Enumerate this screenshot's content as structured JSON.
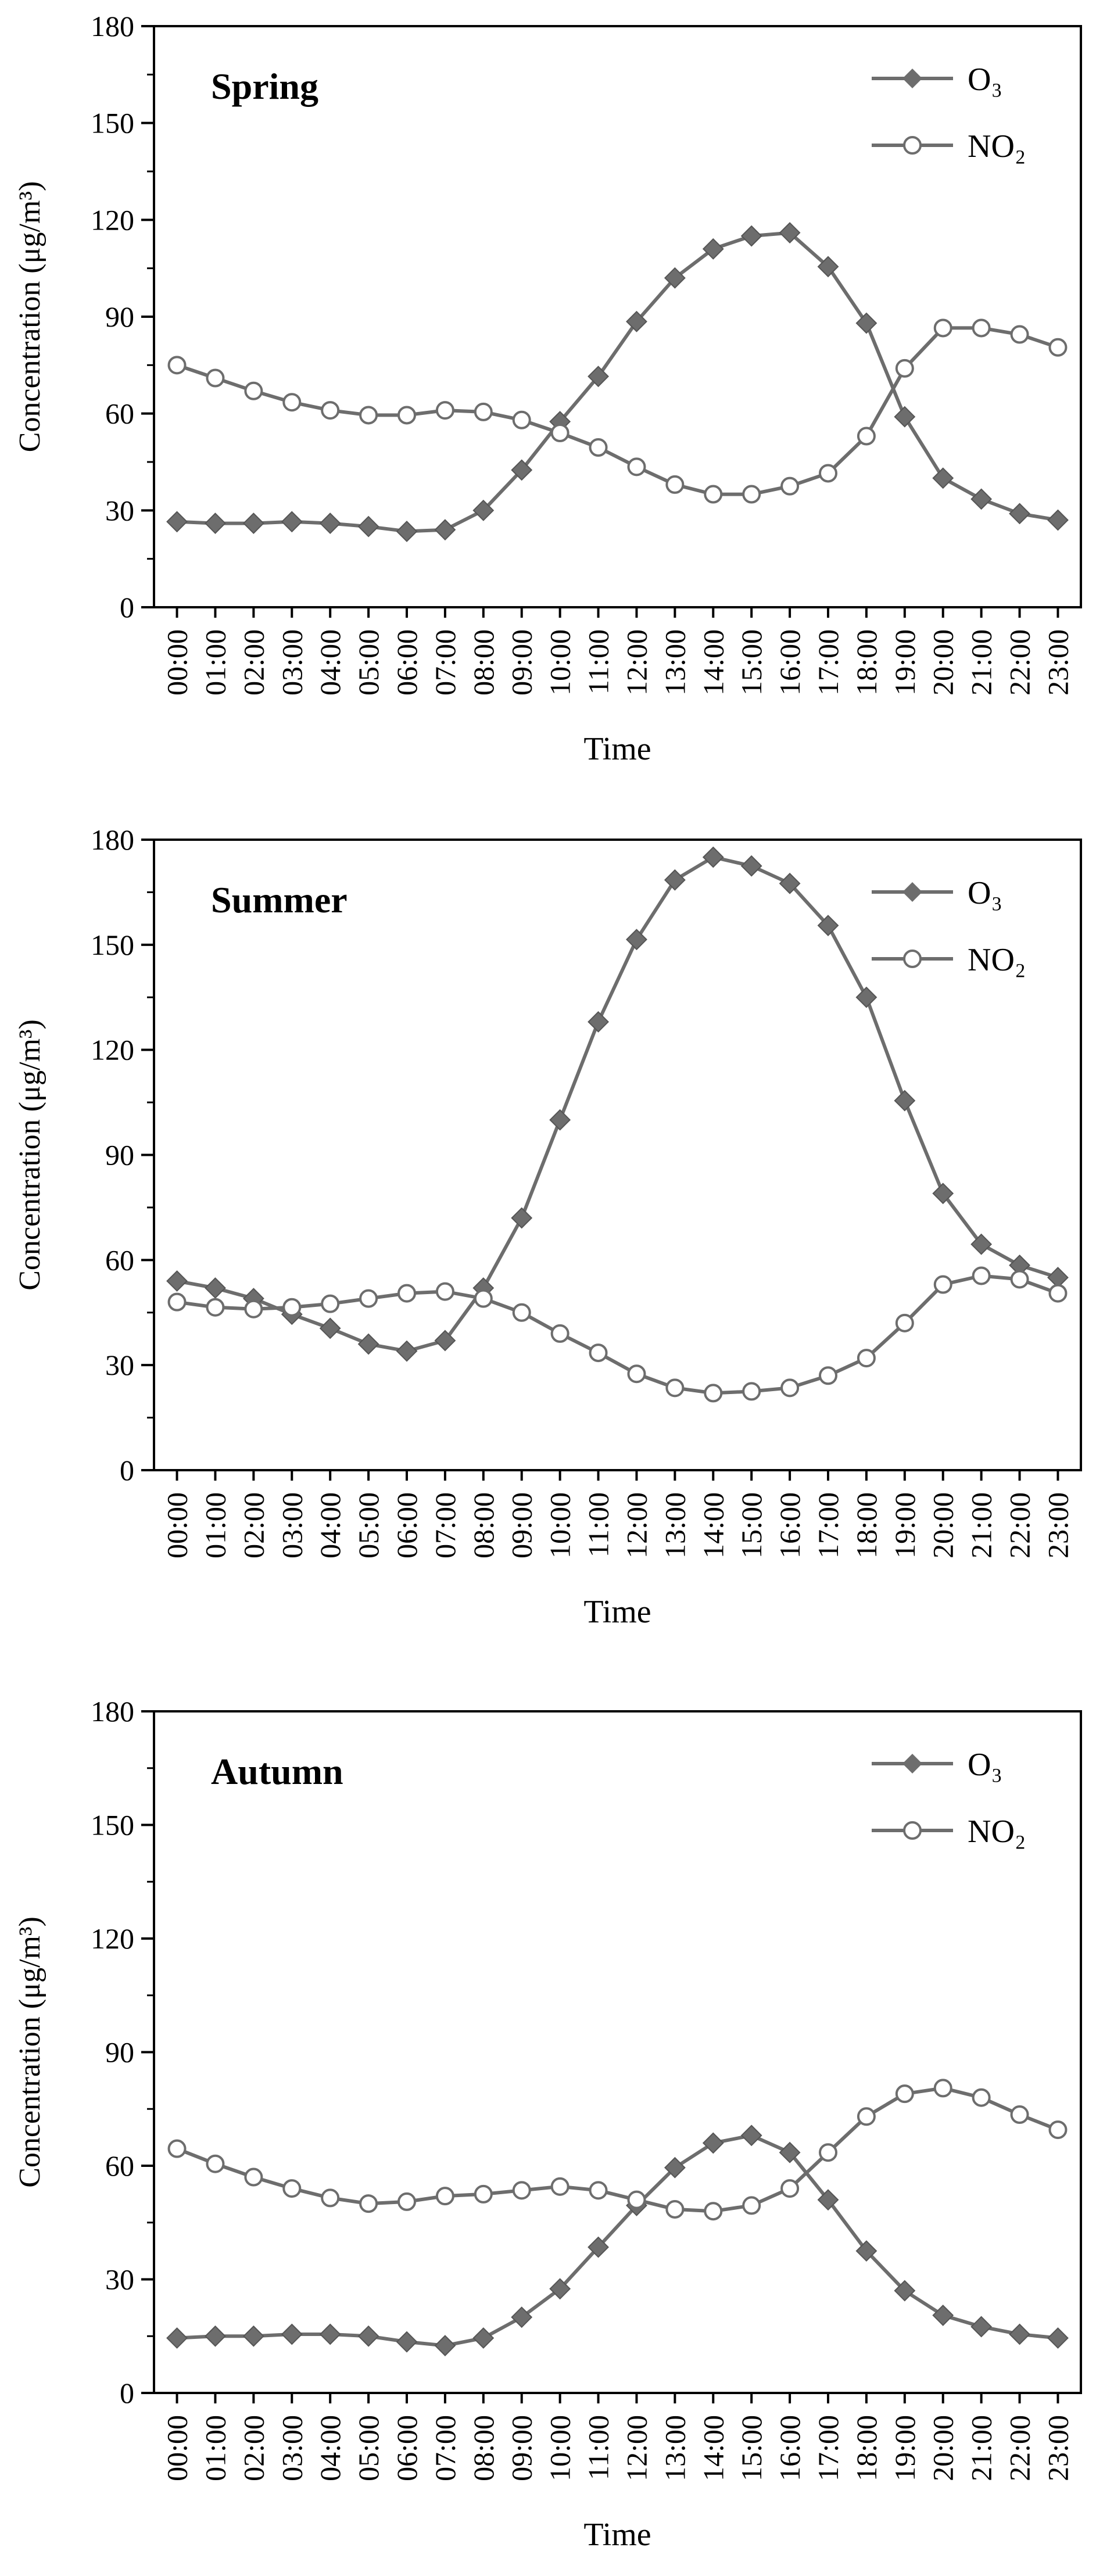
{
  "colors": {
    "o3": "#6d6d6d",
    "no2": "#6d6d6d",
    "no2_fill": "#ffffff",
    "axis": "#000000"
  },
  "chart_data": [
    {
      "type": "line",
      "title": "Spring",
      "xlabel": "Time",
      "ylabel": "Concentration (μg/m³)",
      "ylim": [
        0,
        180
      ],
      "yticks": [
        "0",
        "30",
        "60",
        "90",
        "120",
        "150",
        "180"
      ],
      "categories": [
        "00:00",
        "01:00",
        "02:00",
        "03:00",
        "04:00",
        "05:00",
        "06:00",
        "07:00",
        "08:00",
        "09:00",
        "10:00",
        "11:00",
        "12:00",
        "13:00",
        "14:00",
        "15:00",
        "16:00",
        "17:00",
        "18:00",
        "19:00",
        "20:00",
        "21:00",
        "22:00",
        "23:00"
      ],
      "legend_position": "top-right",
      "series": [
        {
          "name": "O₃",
          "marker": "diamond",
          "values": [
            26.5,
            26,
            26,
            26.5,
            26,
            25,
            23.5,
            24,
            30,
            42.5,
            57.5,
            71.5,
            88.5,
            102,
            111,
            115,
            116,
            105.5,
            88,
            59,
            40,
            33.5,
            29,
            27
          ]
        },
        {
          "name": "NO₂",
          "marker": "circle",
          "values": [
            75,
            71,
            67,
            63.5,
            61,
            59.5,
            59.5,
            61,
            60.5,
            58,
            54,
            49.5,
            43.5,
            38,
            35,
            35,
            37.5,
            41.5,
            53,
            74,
            86.5,
            86.5,
            84.5,
            80.5
          ]
        }
      ]
    },
    {
      "type": "line",
      "title": "Summer",
      "xlabel": "Time",
      "ylabel": "Concentration (μg/m³)",
      "ylim": [
        0,
        180
      ],
      "yticks": [
        "0",
        "30",
        "60",
        "90",
        "120",
        "150",
        "180"
      ],
      "categories": [
        "00:00",
        "01:00",
        "02:00",
        "03:00",
        "04:00",
        "05:00",
        "06:00",
        "07:00",
        "08:00",
        "09:00",
        "10:00",
        "11:00",
        "12:00",
        "13:00",
        "14:00",
        "15:00",
        "16:00",
        "17:00",
        "18:00",
        "19:00",
        "20:00",
        "21:00",
        "22:00",
        "23:00"
      ],
      "legend_position": "top-right",
      "series": [
        {
          "name": "O₃",
          "marker": "diamond",
          "values": [
            54,
            52,
            49,
            44.5,
            40.5,
            36,
            34,
            37,
            52,
            72,
            100,
            128,
            151.5,
            168.5,
            175,
            172.5,
            167.5,
            155.5,
            135,
            105.5,
            79,
            64.5,
            58.5,
            55
          ]
        },
        {
          "name": "NO₂",
          "marker": "circle",
          "values": [
            48,
            46.5,
            46,
            46.5,
            47.5,
            49,
            50.5,
            51,
            49,
            45,
            39,
            33.5,
            27.5,
            23.5,
            22,
            22.5,
            23.5,
            27,
            32,
            42,
            53,
            55.5,
            54.5,
            50.5
          ]
        }
      ]
    },
    {
      "type": "line",
      "title": "Autumn",
      "xlabel": "Time",
      "ylabel": "Concentration (μg/m³)",
      "ylim": [
        0,
        180
      ],
      "yticks": [
        "0",
        "30",
        "60",
        "90",
        "120",
        "150",
        "180"
      ],
      "categories": [
        "00:00",
        "01:00",
        "02:00",
        "03:00",
        "04:00",
        "05:00",
        "06:00",
        "07:00",
        "08:00",
        "09:00",
        "10:00",
        "11:00",
        "12:00",
        "13:00",
        "14:00",
        "15:00",
        "16:00",
        "17:00",
        "18:00",
        "19:00",
        "20:00",
        "21:00",
        "22:00",
        "23:00"
      ],
      "legend_position": "top-right",
      "series": [
        {
          "name": "O₃",
          "marker": "diamond",
          "values": [
            14.5,
            15,
            15,
            15.5,
            15.5,
            15,
            13.5,
            12.5,
            14.5,
            20,
            27.5,
            38.5,
            49.5,
            59.5,
            66,
            68,
            63.5,
            51,
            37.5,
            27,
            20.5,
            17.5,
            15.5,
            14.5
          ]
        },
        {
          "name": "NO₂",
          "marker": "circle",
          "values": [
            64.5,
            60.5,
            57,
            54,
            51.5,
            50,
            50.5,
            52,
            52.5,
            53.5,
            54.5,
            53.5,
            51,
            48.5,
            48,
            49.5,
            54,
            63.5,
            73,
            79,
            80.5,
            78,
            73.5,
            69.5
          ]
        }
      ]
    }
  ]
}
